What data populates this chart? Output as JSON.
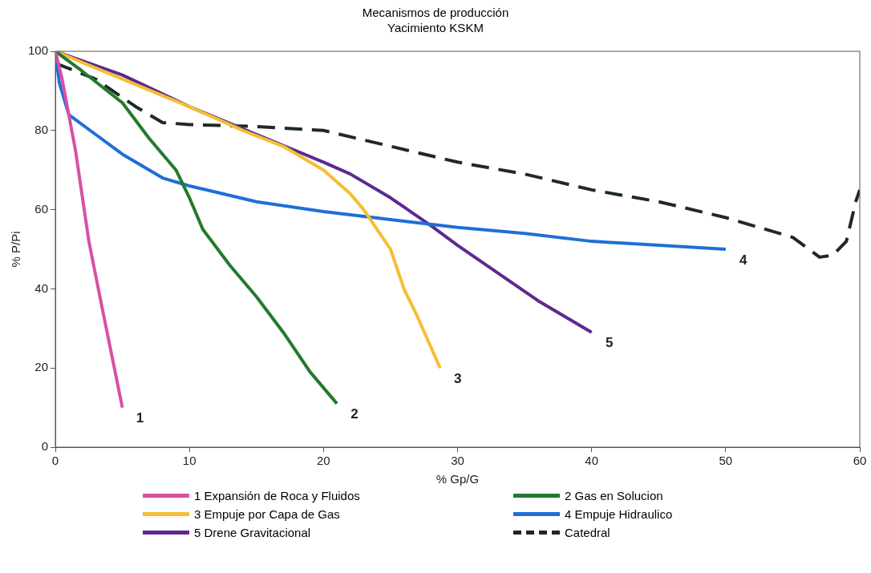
{
  "chart_data": {
    "type": "line",
    "title": "Mecanismos de producción",
    "subtitle": "Yacimiento KSKM",
    "xlabel": "% Gp/G",
    "ylabel": "% P/Pi",
    "xlim": [
      0,
      60
    ],
    "xticks": [
      0,
      10,
      20,
      30,
      40,
      50,
      60
    ],
    "ylim": [
      0,
      100
    ],
    "yticks": [
      0,
      20,
      40,
      60,
      80,
      100
    ],
    "grid": false,
    "legend": "bottom",
    "marker": "none",
    "series": [
      {
        "name": "1 Expansión de Roca y Fluidos",
        "color": "#d94fa6",
        "x": [
          0,
          0.5,
          1.5,
          2.5,
          3.5,
          5
        ],
        "values": [
          100,
          93,
          75,
          52,
          35,
          10
        ]
      },
      {
        "name": "2 Gas en Solucion",
        "color": "#237a2e",
        "x": [
          0,
          2,
          5,
          7,
          9,
          10,
          11,
          13,
          15,
          17,
          19,
          21
        ],
        "values": [
          100,
          95,
          87,
          78,
          70,
          63,
          55,
          46,
          38,
          29,
          19,
          11
        ]
      },
      {
        "name": "3 Empuje por Capa de Gas",
        "color": "#f5be32",
        "x": [
          0,
          5,
          10,
          14,
          17,
          20,
          22,
          23,
          24,
          25,
          26,
          27,
          28.7
        ],
        "values": [
          100,
          93,
          86,
          80,
          76,
          70,
          64,
          60,
          55,
          50,
          40,
          33,
          20
        ]
      },
      {
        "name": "4 Empuje Hidraulico",
        "color": "#1f6fd6",
        "x": [
          0,
          0.3,
          1,
          3,
          5,
          8,
          10,
          15,
          20,
          25,
          30,
          35,
          40,
          45,
          50
        ],
        "values": [
          100,
          92,
          84,
          79,
          74,
          68,
          66,
          62,
          59.5,
          57.5,
          55.5,
          54,
          52,
          51,
          50
        ]
      },
      {
        "name": "5 Drene Gravitacional",
        "color": "#5b2a91",
        "x": [
          0,
          5,
          10,
          15,
          20,
          22,
          25,
          28,
          30,
          33,
          36,
          40
        ],
        "values": [
          100,
          94,
          86,
          79,
          72,
          69,
          63,
          56,
          51,
          44,
          37,
          29
        ]
      },
      {
        "name": "Catedral",
        "color": "#1e2a24",
        "line_style": "dashed",
        "x": [
          0,
          3,
          6,
          8,
          10,
          15,
          20,
          25,
          30,
          35,
          40,
          45,
          50,
          55,
          57,
          58,
          59,
          59.7,
          60
        ],
        "values": [
          97,
          93,
          86,
          82,
          81.5,
          81,
          80,
          76,
          72,
          69,
          65,
          62,
          58,
          53,
          48,
          48.5,
          52,
          62,
          65
        ]
      }
    ],
    "annotations": [
      {
        "text": "1",
        "x": 5,
        "y": 10
      },
      {
        "text": "2",
        "x": 21,
        "y": 11
      },
      {
        "text": "3",
        "x": 28.7,
        "y": 20
      },
      {
        "text": "4",
        "x": 50,
        "y": 50
      },
      {
        "text": "5",
        "x": 40,
        "y": 29
      }
    ]
  }
}
